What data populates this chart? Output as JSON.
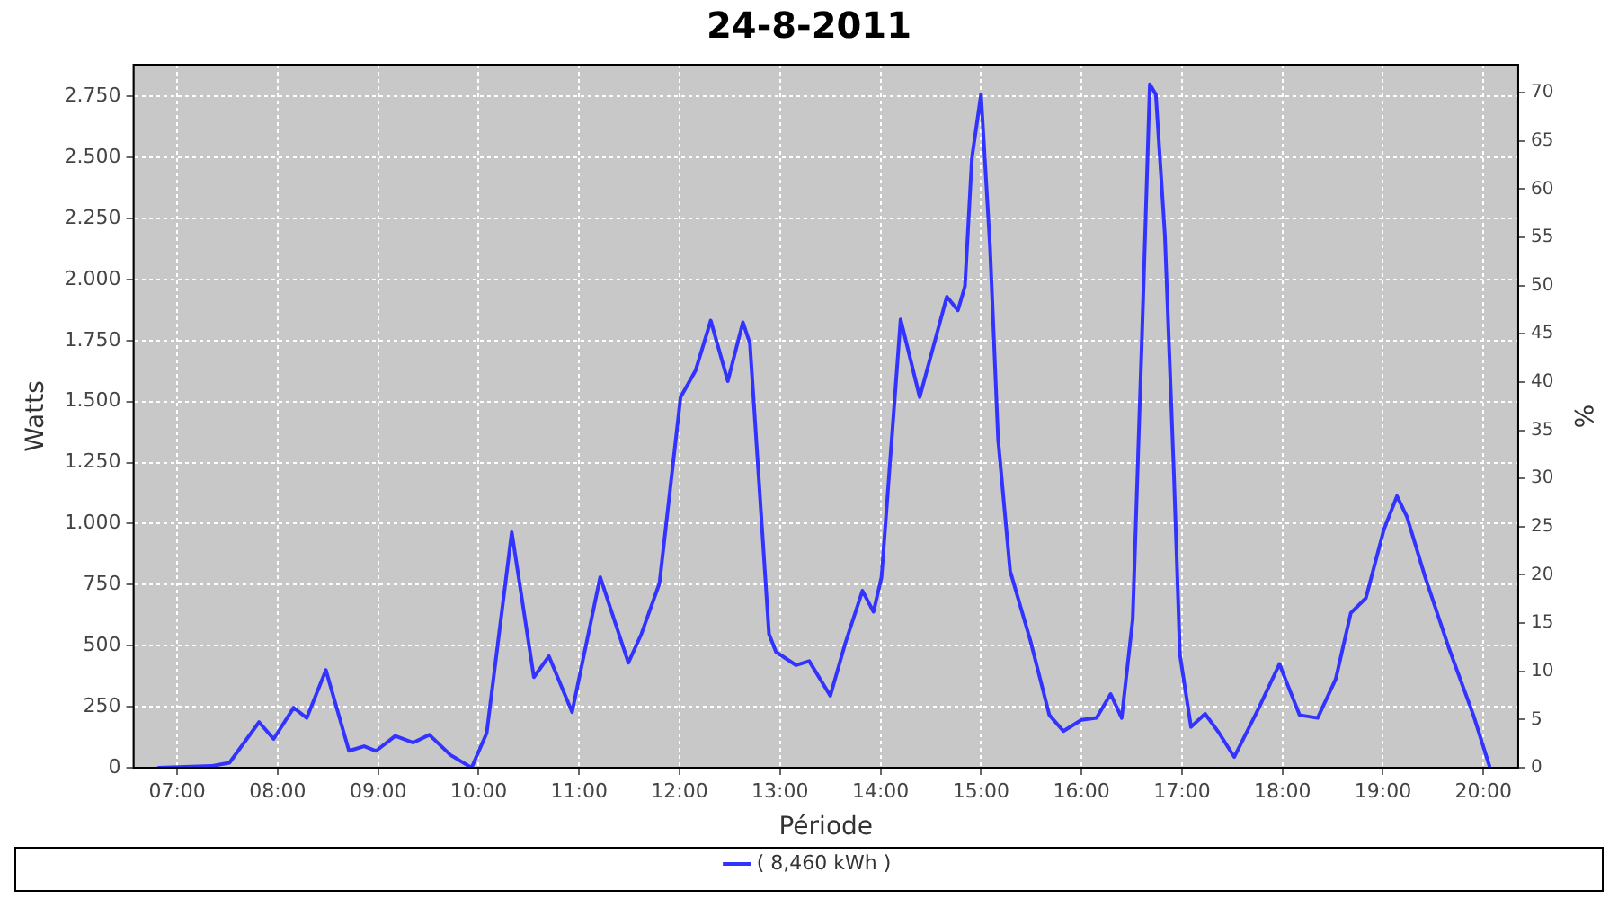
{
  "chart_data": {
    "type": "line",
    "title": "24-8-2011",
    "xlabel": "Période",
    "ylabel": "Watts",
    "y2label": "%",
    "xlim": [
      6.566,
      20.346
    ],
    "xticks": [
      {
        "value": 7,
        "label": "07:00"
      },
      {
        "value": 8,
        "label": "08:00"
      },
      {
        "value": 9,
        "label": "09:00"
      },
      {
        "value": 10,
        "label": "10:00"
      },
      {
        "value": 11,
        "label": "11:00"
      },
      {
        "value": 12,
        "label": "12:00"
      },
      {
        "value": 13,
        "label": "13:00"
      },
      {
        "value": 14,
        "label": "14:00"
      },
      {
        "value": 15,
        "label": "15:00"
      },
      {
        "value": 16,
        "label": "16:00"
      },
      {
        "value": 17,
        "label": "17:00"
      },
      {
        "value": 18,
        "label": "18:00"
      },
      {
        "value": 19,
        "label": "19:00"
      },
      {
        "value": 20,
        "label": "20:00"
      }
    ],
    "ylim": [
      0,
      2880
    ],
    "yticks": [
      0,
      250,
      500,
      750,
      {
        "value": 1000,
        "label": "1.000"
      },
      {
        "value": 1250,
        "label": "1.250"
      },
      {
        "value": 1500,
        "label": "1.500"
      },
      {
        "value": 1750,
        "label": "1.750"
      },
      {
        "value": 2000,
        "label": "2.000"
      },
      {
        "value": 2250,
        "label": "2.250"
      },
      {
        "value": 2500,
        "label": "2.500"
      },
      {
        "value": 2750,
        "label": "2.750"
      }
    ],
    "y2lim": [
      0,
      72.9
    ],
    "y2ticks": [
      0,
      5,
      10,
      15,
      20,
      25,
      30,
      35,
      40,
      45,
      50,
      55,
      60,
      65,
      70
    ],
    "grid": true,
    "legend": "bottom",
    "marker": "none",
    "line_style": "solid",
    "series": [
      {
        "name": "( 8,460 kWh )",
        "color": "#3333ff",
        "x": [
          6.815,
          7.34,
          7.52,
          7.815,
          7.96,
          8.16,
          8.29,
          8.48,
          8.71,
          8.86,
          8.98,
          9.17,
          9.35,
          9.51,
          9.72,
          9.93,
          10.08,
          10.33,
          10.55,
          10.7,
          10.93,
          11.21,
          11.49,
          11.62,
          11.8,
          12.01,
          12.16,
          12.31,
          12.48,
          12.63,
          12.7,
          12.89,
          12.96,
          13.16,
          13.29,
          13.5,
          13.65,
          13.82,
          13.93,
          14.01,
          14.2,
          14.39,
          14.66,
          14.77,
          14.84,
          14.91,
          15.0,
          15.09,
          15.17,
          15.29,
          15.49,
          15.68,
          15.82,
          16.0,
          16.15,
          16.29,
          16.4,
          16.51,
          16.6,
          16.68,
          16.74,
          16.83,
          16.92,
          16.98,
          17.09,
          17.23,
          17.37,
          17.52,
          17.76,
          17.97,
          18.17,
          18.35,
          18.53,
          18.68,
          18.83,
          19.01,
          19.14,
          19.24,
          19.42,
          19.66,
          19.9,
          20.06
        ],
        "values": [
          0,
          7,
          20,
          187,
          118,
          246,
          204,
          400,
          69,
          88,
          69,
          130,
          103,
          135,
          52,
          0,
          142,
          965,
          371,
          457,
          228,
          781,
          430,
          548,
          756,
          1518,
          1628,
          1832,
          1584,
          1825,
          1739,
          548,
          474,
          420,
          437,
          295,
          511,
          725,
          639,
          781,
          1837,
          1518,
          1930,
          1874,
          1972,
          2500,
          2758,
          2132,
          1346,
          806,
          523,
          216,
          150,
          196,
          204,
          302,
          204,
          609,
          1739,
          2800,
          2758,
          2181,
          1199,
          462,
          167,
          221,
          142,
          44,
          241,
          425,
          216,
          204,
          363,
          634,
          695,
          977,
          1113,
          1027,
          781,
          486,
          216,
          7
        ]
      }
    ]
  }
}
